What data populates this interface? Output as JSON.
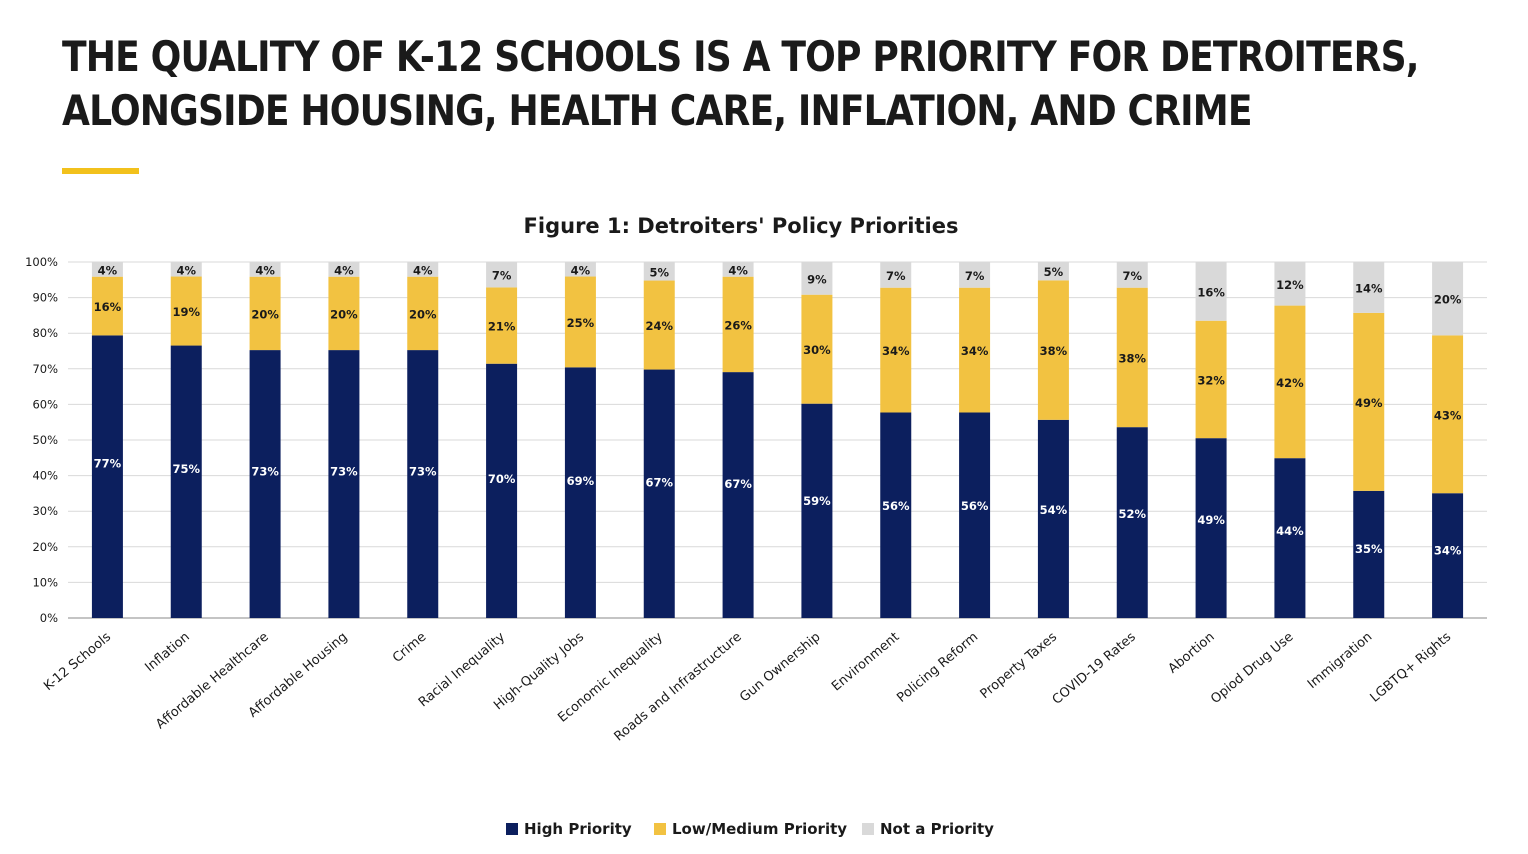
{
  "headline": {
    "line1": "THE QUALITY OF K-12 SCHOOLS IS A TOP PRIORITY FOR DETROITERS,",
    "line2": "ALONGSIDE HOUSING, HEALTH CARE, INFLATION, AND CRIME"
  },
  "colors": {
    "high": "#0c1f5e",
    "low_medium": "#f2c241",
    "not_priority": "#d9d9d9",
    "accent": "#f2c11c",
    "gridline": "#d9d9d9",
    "text": "#1a1a1a"
  },
  "chart_data": {
    "type": "bar",
    "stacked": true,
    "title": "Figure 1: Detroiters' Policy Priorities",
    "categories": [
      "K-12 Schools",
      "Inflation",
      "Affordable Healthcare",
      "Affordable Housing",
      "Crime",
      "Racial Inequality",
      "High-Quality Jobs",
      "Economic Inequality",
      "Roads and Infrastructure",
      "Gun Ownership",
      "Environment",
      "Policing Reform",
      "Property Taxes",
      "COVID-19 Rates",
      "Abortion",
      "Opiod Drug Use",
      "Immigration",
      "LGBTQ+ Rights"
    ],
    "series": [
      {
        "name": "High Priority",
        "values": [
          77,
          75,
          73,
          73,
          73,
          70,
          69,
          67,
          67,
          59,
          56,
          56,
          54,
          52,
          49,
          44,
          35,
          34
        ]
      },
      {
        "name": "Low/Medium Priority",
        "values": [
          16,
          19,
          20,
          20,
          20,
          21,
          25,
          24,
          26,
          30,
          34,
          34,
          38,
          38,
          32,
          42,
          49,
          43
        ]
      },
      {
        "name": "Not a Priority",
        "values": [
          4,
          4,
          4,
          4,
          4,
          7,
          4,
          5,
          4,
          9,
          7,
          7,
          5,
          7,
          16,
          12,
          14,
          20
        ]
      }
    ],
    "ylim": [
      0,
      100
    ],
    "yticks": [
      "0%",
      "10%",
      "20%",
      "30%",
      "40%",
      "50%",
      "60%",
      "70%",
      "80%",
      "90%",
      "100%"
    ],
    "value_suffix": "%",
    "grid": true,
    "legend_position": "bottom"
  }
}
